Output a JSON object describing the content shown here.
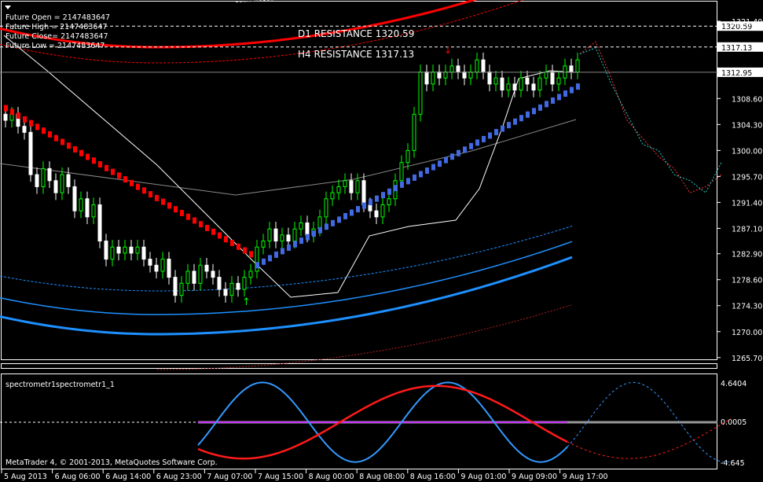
{
  "info_lines": [
    "Future Open = 2147483647",
    "Future High = 2147483647",
    "Future Close= 2147483647",
    "Future Low = 2147483647"
  ],
  "levels": [
    {
      "label": "D1 RESISTANCE 1320.59",
      "price": 1320.59,
      "tag": "1320.59"
    },
    {
      "label": "H4 RESISTANCE 1317.13",
      "price": 1317.13,
      "tag": "1317.13"
    }
  ],
  "current_price": {
    "price": 1312.95,
    "tag": "1312.95"
  },
  "price_axis": [
    "1321.40",
    "1308.60",
    "1304.30",
    "1300.00",
    "1295.70",
    "1291.40",
    "1287.10",
    "1282.90",
    "1278.60",
    "1274.30",
    "1270.00",
    "1265.70"
  ],
  "time_axis": [
    "5 Aug 2013",
    "6 Aug 06:00",
    "6 Aug 14:00",
    "6 Aug 23:00",
    "7 Aug 07:00",
    "7 Aug 15:00",
    "8 Aug 00:00",
    "8 Aug 08:00",
    "8 Aug 16:00",
    "9 Aug 01:00",
    "9 Aug 09:00",
    "9 Aug 17:00"
  ],
  "indicator": {
    "name": "spectrometr1spectrometr1_1",
    "axis": [
      "4.6404",
      "0.0005",
      "-4.645"
    ],
    "colors": {
      "fast": "#3399ff",
      "slow": "#ff1a1a",
      "zero": "#cc33ff"
    }
  },
  "copyright": "MetaTrader 4, © 2001-2013, MetaQuotes Software Corp.",
  "colors": {
    "bull": "#00ff00",
    "bear": "#ffffff",
    "ma_blue": "#4169e1",
    "ma_red": "#ff0000",
    "band": "#1e90ff"
  },
  "chart_data": {
    "type": "candlestick",
    "closes": [
      1305,
      1306,
      1304,
      1303,
      1296,
      1294,
      1297,
      1295,
      1293,
      1296,
      1294,
      1290,
      1292,
      1289,
      1291,
      1285,
      1282,
      1284,
      1283,
      1284,
      1283,
      1284,
      1282,
      1281,
      1280,
      1282,
      1279,
      1276,
      1278,
      1280,
      1278,
      1281,
      1280,
      1279,
      1277,
      1276,
      1278,
      1277,
      1279,
      1280,
      1284,
      1285,
      1287,
      1285,
      1286,
      1285,
      1287,
      1288,
      1286,
      1287,
      1289,
      1292,
      1293,
      1294,
      1295,
      1293,
      1295,
      1291,
      1290,
      1289,
      1291,
      1292,
      1295,
      1298,
      1300,
      1306,
      1313,
      1311,
      1313,
      1312,
      1313,
      1314,
      1313,
      1312,
      1313,
      1315,
      1313,
      1311,
      1312,
      1310,
      1311,
      1310,
      1312,
      1311,
      1310,
      1312,
      1313,
      1311,
      1312,
      1314,
      1313,
      1315
    ],
    "forecast_lines": [
      [
        1316,
        1318,
        1312,
        1305,
        1302,
        1299,
        1297,
        1293,
        1294,
        1296
      ],
      [
        1316,
        1317,
        1311,
        1306,
        1301,
        1300,
        1296,
        1295,
        1293,
        1298
      ]
    ]
  }
}
